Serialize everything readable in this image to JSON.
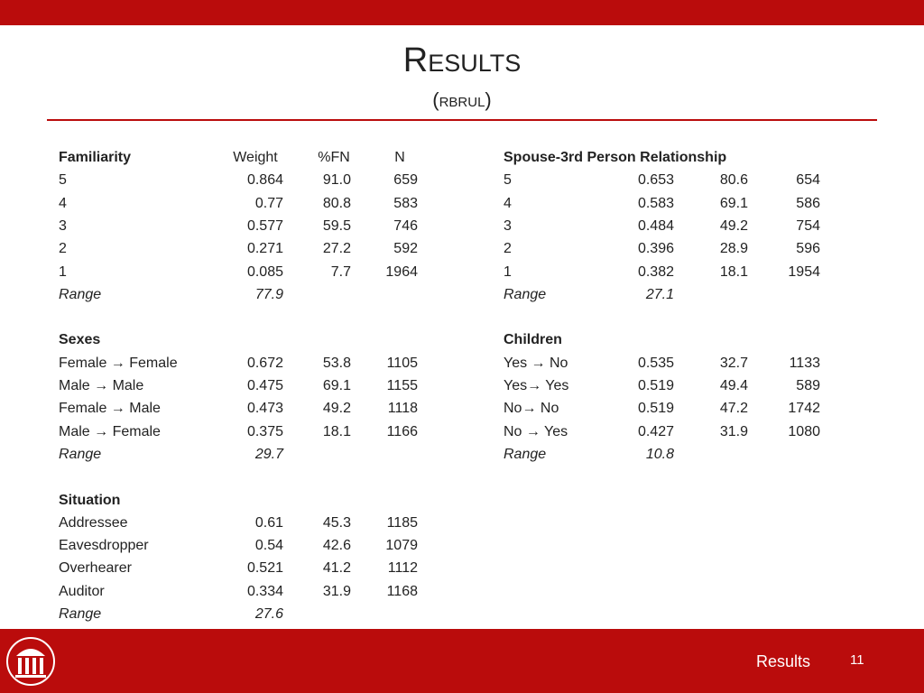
{
  "header": {
    "title": "Results",
    "subtitle": "(rbrul)"
  },
  "tables": [
    {
      "columns": [
        "Weight",
        "%FN",
        "N"
      ],
      "groups": [
        {
          "title": "Familiarity",
          "rows": [
            [
              "5",
              "0.864",
              "91.0",
              "659"
            ],
            [
              "4",
              "0.77",
              "80.8",
              "583"
            ],
            [
              "3",
              "0.577",
              "59.5",
              "746"
            ],
            [
              "2",
              "0.271",
              "27.2",
              "592"
            ],
            [
              "1",
              "0.085",
              "7.7",
              "1964"
            ]
          ],
          "range": [
            "Range",
            "77.9"
          ]
        },
        {
          "title": "Sexes",
          "rows": [
            [
              "Female → Female",
              "0.672",
              "53.8",
              "1105"
            ],
            [
              "Male → Male",
              "0.475",
              "69.1",
              "1155"
            ],
            [
              "Female → Male",
              "0.473",
              "49.2",
              "1118"
            ],
            [
              "Male → Female",
              "0.375",
              "18.1",
              "1166"
            ]
          ],
          "range": [
            "Range",
            "29.7"
          ]
        },
        {
          "title": "Situation",
          "rows": [
            [
              "Addressee",
              "0.61",
              "45.3",
              "1185"
            ],
            [
              "Eavesdropper",
              "0.54",
              "42.6",
              "1079"
            ],
            [
              "Overhearer",
              "0.521",
              "41.2",
              "1112"
            ],
            [
              "Auditor",
              "0.334",
              "31.9",
              "1168"
            ]
          ],
          "range": [
            "Range",
            "27.6"
          ]
        }
      ]
    },
    {
      "groups": [
        {
          "title": "Spouse-3rd Person Relationship",
          "rows": [
            [
              "5",
              "0.653",
              "80.6",
              "654"
            ],
            [
              "4",
              "0.583",
              "69.1",
              "586"
            ],
            [
              "3",
              "0.484",
              "49.2",
              "754"
            ],
            [
              "2",
              "0.396",
              "28.9",
              "596"
            ],
            [
              "1",
              "0.382",
              "18.1",
              "1954"
            ]
          ],
          "range": [
            "Range",
            "27.1"
          ]
        },
        {
          "title": "Children",
          "rows": [
            [
              "Yes → No",
              "0.535",
              "32.7",
              "1133"
            ],
            [
              "Yes→ Yes",
              "0.519",
              "49.4",
              "589"
            ],
            [
              "No→ No",
              "0.519",
              "47.2",
              "1742"
            ],
            [
              "No → Yes",
              "0.427",
              "31.9",
              "1080"
            ]
          ],
          "range": [
            "Range",
            "10.8"
          ]
        }
      ]
    }
  ],
  "footer": {
    "label": "Results",
    "page": "11"
  }
}
